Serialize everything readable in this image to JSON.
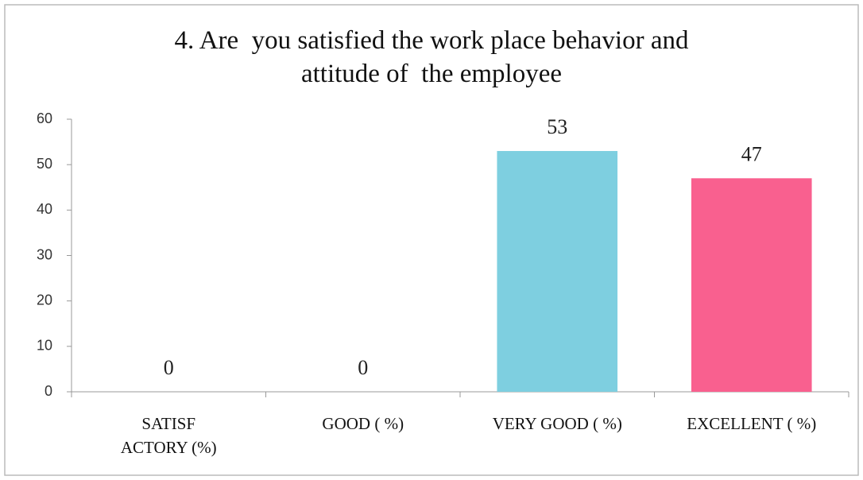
{
  "chart_data": {
    "type": "bar",
    "title": "4. Are  you satisfied the work place behavior and\nattitude of  the employee",
    "categories": [
      "SATISF\nACTORY (%)",
      "GOOD ( %)",
      "VERY GOOD ( %)",
      "EXCELLENT ( %)"
    ],
    "values": [
      0,
      0,
      53,
      47
    ],
    "colors": [
      "#4f81bd",
      "#c0504d",
      "#7ecfe0",
      "#f9608f"
    ],
    "ylim": [
      0,
      60
    ],
    "yticks": [
      0,
      10,
      20,
      30,
      40,
      50,
      60
    ],
    "grid": false
  }
}
